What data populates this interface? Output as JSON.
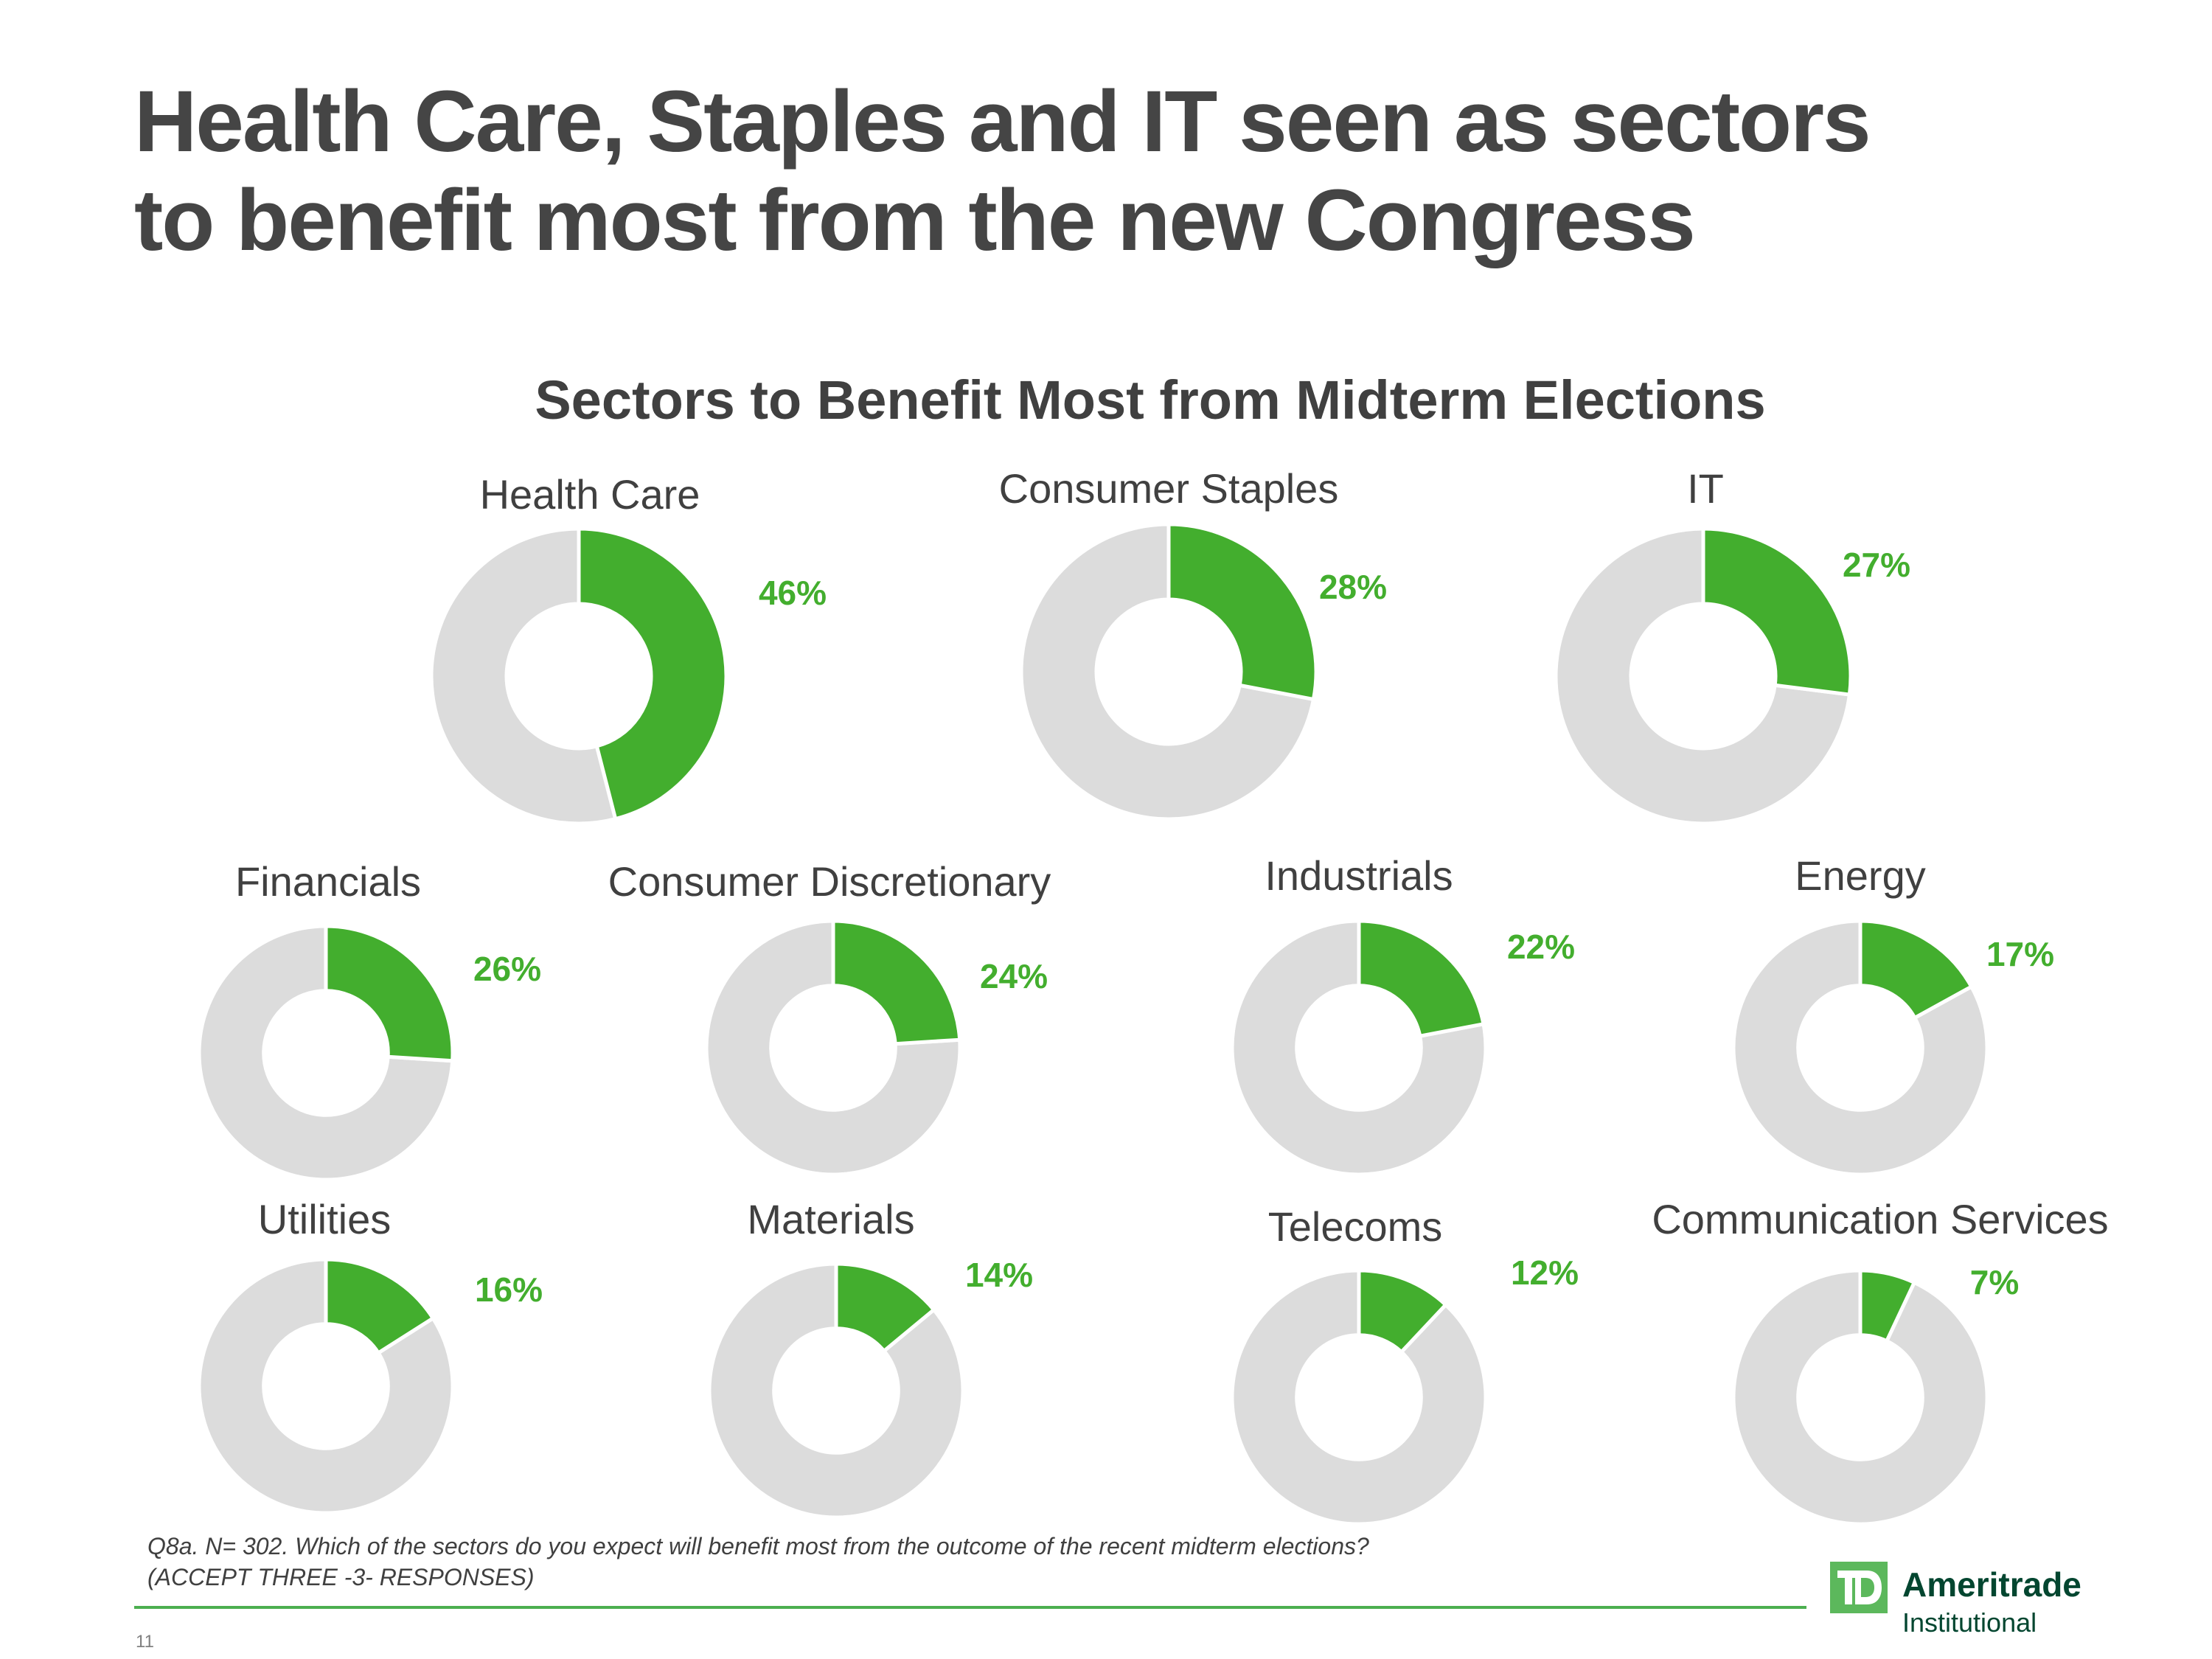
{
  "slide": {
    "title_lines": [
      "Health Care, Staples and IT seen as sectors",
      "to benefit most from the new Congress"
    ],
    "page_number": "11",
    "footnote_lines": [
      "Q8a. N= 302. Which of the sectors do you expect will benefit most from the outcome of the recent midterm elections?",
      "(ACCEPT THREE -3- RESPONSES)"
    ],
    "logo": {
      "icon": "td-logo-icon",
      "brand": "Ameritrade",
      "subtitle": "Institutional"
    }
  },
  "colors": {
    "accent": "#43ae2e",
    "remainder": "#dcdcdc",
    "title_text": "#454545",
    "label_text": "#404040",
    "brand_dark": "#034630",
    "brand_green": "#5cb85c"
  },
  "chart_data": {
    "type": "pie",
    "variant": "donut",
    "title": "Sectors to Benefit Most from Midterm Elections",
    "unit": "%",
    "categories": [
      "Health Care",
      "Consumer Staples",
      "IT",
      "Financials",
      "Consumer Discretionary",
      "Industrials",
      "Energy",
      "Utilities",
      "Materials",
      "Telecoms",
      "Communication Services"
    ],
    "values": [
      46,
      28,
      27,
      26,
      24,
      22,
      17,
      16,
      14,
      12,
      7
    ],
    "value_labels": [
      "46%",
      "28%",
      "27%",
      "26%",
      "24%",
      "22%",
      "17%",
      "16%",
      "14%",
      "12%",
      "7%"
    ],
    "remainder_values": [
      54,
      72,
      73,
      74,
      76,
      78,
      83,
      84,
      86,
      88,
      93
    ],
    "legend": "none"
  }
}
